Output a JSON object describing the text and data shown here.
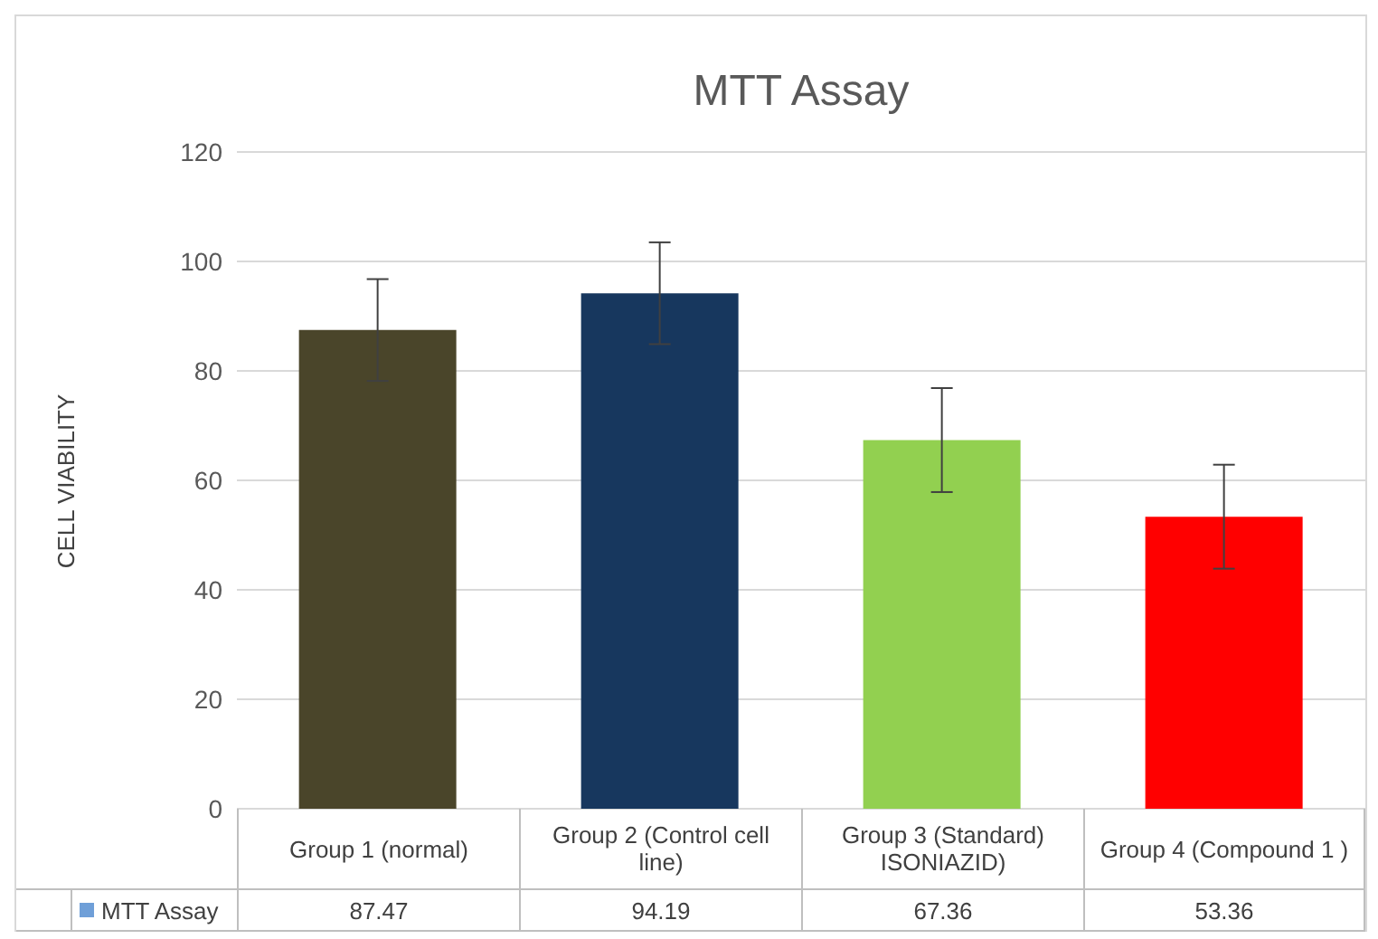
{
  "chart_data": {
    "type": "bar",
    "title": "MTT Assay",
    "ylabel": "CELL VIABILITY",
    "categories": [
      "Group 1 (normal)",
      "Group 2 (Control cell line)",
      "Group 3 (Standard) ISONIAZID)",
      "Group 4 (Compound 1  )"
    ],
    "series": [
      {
        "name": "MTT Assay",
        "color": "#6f9fd8",
        "colors": [
          "#4a452a",
          "#17375e",
          "#92d050",
          "#ff0000"
        ],
        "values": [
          87.47,
          94.19,
          67.36,
          53.36
        ],
        "errors": [
          9.3,
          9.3,
          9.5,
          9.5
        ]
      }
    ],
    "ylim": [
      0,
      120
    ],
    "yticks": [
      0,
      20,
      40,
      60,
      80,
      100,
      120
    ],
    "grid": "y",
    "legend": "bottom",
    "data_labels": true
  }
}
